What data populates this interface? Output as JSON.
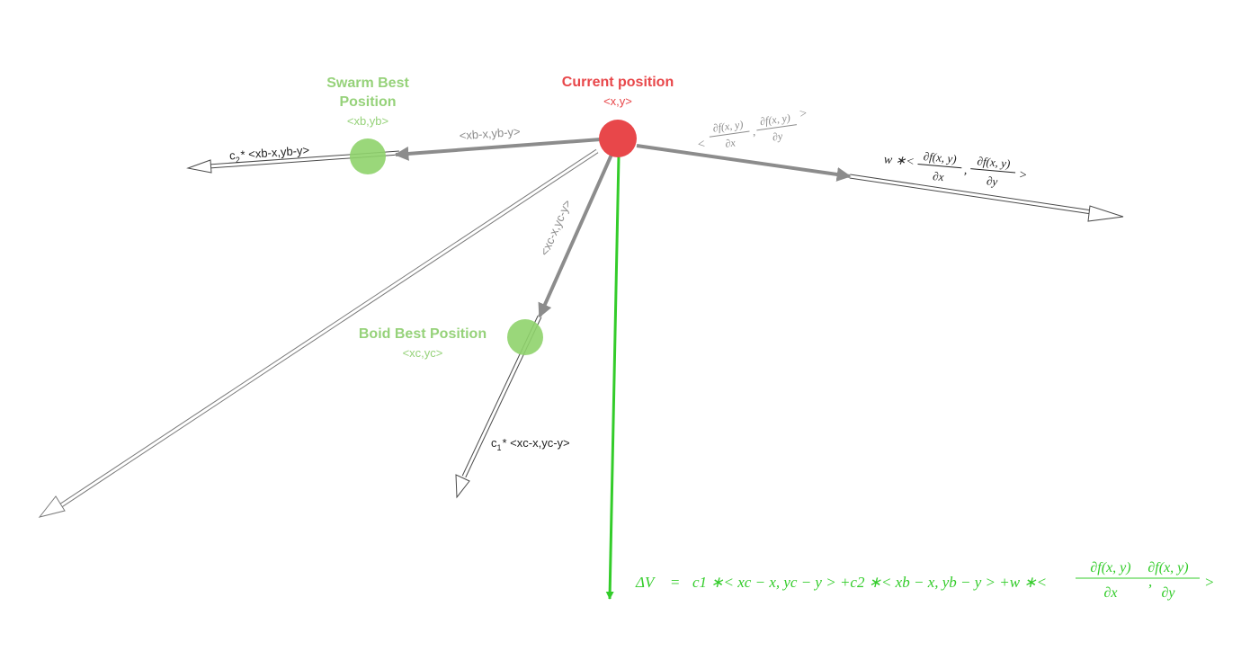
{
  "colors": {
    "current": "#e8474a",
    "best": "#8fd36b",
    "best_text": "#96d27a",
    "result": "#33cc2a",
    "vector_gray": "#8c8c8c",
    "outline": "#5a5a5a"
  },
  "nodes": {
    "current": {
      "title": "Current position",
      "coords": "<x,y>"
    },
    "swarm_best": {
      "title_line1": "Swarm Best",
      "title_line2": "Position",
      "coords": "<xb,yb>"
    },
    "boid_best": {
      "title": "Boid Best Position",
      "coords": "<xc,yc>"
    }
  },
  "vector_labels": {
    "to_swarm": "<xb-x,yb-y>",
    "to_boid": "<xc-x,yc-y>",
    "c2_coef": "c",
    "c2_sub": "2",
    "c2_rest": "* <xb-x,yb-y>",
    "c1_coef": "c",
    "c1_sub": "1",
    "c1_rest": "* <xc-x,yc-y>"
  },
  "gradient": {
    "lt": "<",
    "gt": ">",
    "num_x": "∂f(x, y)",
    "den_x": "∂x",
    "num_y": "∂f(x, y)",
    "den_y": "∂y",
    "comma": ",",
    "w_prefix": "w ∗<"
  },
  "equation": {
    "lhs": "ΔV⃗ =",
    "body": "c1 ∗< xc − x, yc − y > +c2 ∗< xb − x, yb − y > +w ∗<",
    "num_x": "∂f(x, y)",
    "den_x": "∂x",
    "comma": ",",
    "num_y": "∂f(x, y)",
    "den_y": "∂y",
    "gt": ">"
  }
}
